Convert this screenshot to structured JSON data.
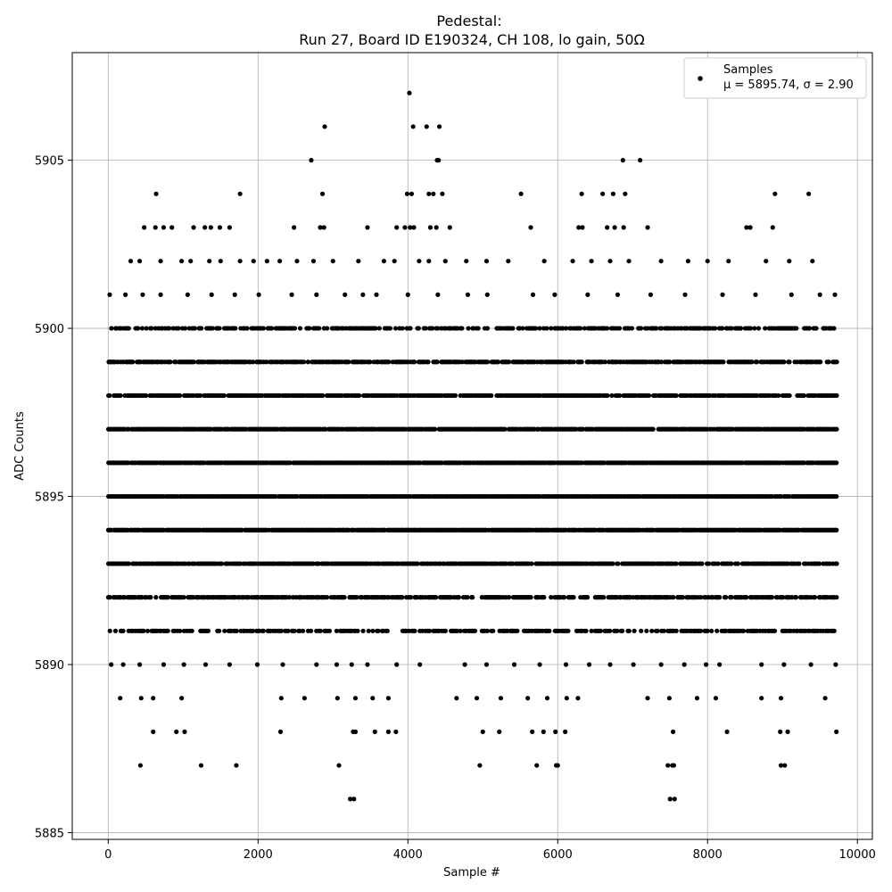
{
  "chart_data": {
    "type": "scatter",
    "title": "Pedestal:",
    "subtitle": "Run 27, Board ID E190324, CH 108, lo gain, 50Ω",
    "xlabel": "Sample #",
    "ylabel": "ADC Counts",
    "xlim": [
      -480,
      10200
    ],
    "ylim": [
      5884.8,
      5908.2
    ],
    "xticks": [
      0,
      2000,
      4000,
      6000,
      8000,
      10000
    ],
    "xtick_labels": [
      "0",
      "2000",
      "4000",
      "6000",
      "8000",
      "10000"
    ],
    "yticks": [
      5885,
      5890,
      5895,
      5900,
      5905
    ],
    "ytick_labels": [
      "5885",
      "5890",
      "5895",
      "5900",
      "5905"
    ],
    "grid": true,
    "legend_position": "top-right",
    "marker_color": "#000000",
    "series": [
      {
        "name": "Samples",
        "label": "μ = 5895.74, σ = 2.90",
        "mean": 5895.74,
        "std": 2.9,
        "n_samples": 9720,
        "value_range": [
          5886,
          5907
        ],
        "continuous_bands": [
          5891,
          5892,
          5893,
          5894,
          5895,
          5896,
          5897,
          5898,
          5899,
          5900
        ],
        "sparse_points": [
          {
            "x": 4020,
            "y": 5907
          },
          {
            "x": 2890,
            "y": 5906
          },
          {
            "x": 4070,
            "y": 5906
          },
          {
            "x": 4250,
            "y": 5906
          },
          {
            "x": 4420,
            "y": 5906
          },
          {
            "x": 2710,
            "y": 5905
          },
          {
            "x": 4390,
            "y": 5905
          },
          {
            "x": 4410,
            "y": 5905
          },
          {
            "x": 6870,
            "y": 5905
          },
          {
            "x": 7100,
            "y": 5905
          },
          {
            "x": 640,
            "y": 5904
          },
          {
            "x": 1760,
            "y": 5904
          },
          {
            "x": 2860,
            "y": 5904
          },
          {
            "x": 3990,
            "y": 5904
          },
          {
            "x": 4050,
            "y": 5904
          },
          {
            "x": 4280,
            "y": 5904
          },
          {
            "x": 4340,
            "y": 5904
          },
          {
            "x": 4460,
            "y": 5904
          },
          {
            "x": 5510,
            "y": 5904
          },
          {
            "x": 6320,
            "y": 5904
          },
          {
            "x": 6600,
            "y": 5904
          },
          {
            "x": 6740,
            "y": 5904
          },
          {
            "x": 6900,
            "y": 5904
          },
          {
            "x": 8900,
            "y": 5904
          },
          {
            "x": 9350,
            "y": 5904
          },
          {
            "x": 480,
            "y": 5903
          },
          {
            "x": 630,
            "y": 5903
          },
          {
            "x": 740,
            "y": 5903
          },
          {
            "x": 850,
            "y": 5903
          },
          {
            "x": 1140,
            "y": 5903
          },
          {
            "x": 1290,
            "y": 5903
          },
          {
            "x": 1370,
            "y": 5903
          },
          {
            "x": 1490,
            "y": 5903
          },
          {
            "x": 1620,
            "y": 5903
          },
          {
            "x": 2480,
            "y": 5903
          },
          {
            "x": 2830,
            "y": 5903
          },
          {
            "x": 2880,
            "y": 5903
          },
          {
            "x": 3460,
            "y": 5903
          },
          {
            "x": 3850,
            "y": 5903
          },
          {
            "x": 3960,
            "y": 5903
          },
          {
            "x": 4030,
            "y": 5903
          },
          {
            "x": 4080,
            "y": 5903
          },
          {
            "x": 4300,
            "y": 5903
          },
          {
            "x": 4380,
            "y": 5903
          },
          {
            "x": 4560,
            "y": 5903
          },
          {
            "x": 5640,
            "y": 5903
          },
          {
            "x": 6280,
            "y": 5903
          },
          {
            "x": 6330,
            "y": 5903
          },
          {
            "x": 6660,
            "y": 5903
          },
          {
            "x": 6760,
            "y": 5903
          },
          {
            "x": 6880,
            "y": 5903
          },
          {
            "x": 7200,
            "y": 5903
          },
          {
            "x": 8520,
            "y": 5903
          },
          {
            "x": 8570,
            "y": 5903
          },
          {
            "x": 8870,
            "y": 5903
          },
          {
            "x": 300,
            "y": 5902
          },
          {
            "x": 420,
            "y": 5902
          },
          {
            "x": 700,
            "y": 5902
          },
          {
            "x": 980,
            "y": 5902
          },
          {
            "x": 1100,
            "y": 5902
          },
          {
            "x": 1350,
            "y": 5902
          },
          {
            "x": 1500,
            "y": 5902
          },
          {
            "x": 1760,
            "y": 5902
          },
          {
            "x": 1940,
            "y": 5902
          },
          {
            "x": 2120,
            "y": 5902
          },
          {
            "x": 2290,
            "y": 5902
          },
          {
            "x": 2520,
            "y": 5902
          },
          {
            "x": 2740,
            "y": 5902
          },
          {
            "x": 3000,
            "y": 5902
          },
          {
            "x": 3340,
            "y": 5902
          },
          {
            "x": 3680,
            "y": 5902
          },
          {
            "x": 3820,
            "y": 5902
          },
          {
            "x": 4150,
            "y": 5902
          },
          {
            "x": 4280,
            "y": 5902
          },
          {
            "x": 4500,
            "y": 5902
          },
          {
            "x": 4780,
            "y": 5902
          },
          {
            "x": 5050,
            "y": 5902
          },
          {
            "x": 5340,
            "y": 5902
          },
          {
            "x": 5820,
            "y": 5902
          },
          {
            "x": 6200,
            "y": 5902
          },
          {
            "x": 6450,
            "y": 5902
          },
          {
            "x": 6700,
            "y": 5902
          },
          {
            "x": 6950,
            "y": 5902
          },
          {
            "x": 7380,
            "y": 5902
          },
          {
            "x": 7740,
            "y": 5902
          },
          {
            "x": 8000,
            "y": 5902
          },
          {
            "x": 8280,
            "y": 5902
          },
          {
            "x": 8780,
            "y": 5902
          },
          {
            "x": 9090,
            "y": 5902
          },
          {
            "x": 9400,
            "y": 5902
          },
          {
            "x": 20,
            "y": 5901
          },
          {
            "x": 230,
            "y": 5901
          },
          {
            "x": 460,
            "y": 5901
          },
          {
            "x": 700,
            "y": 5901
          },
          {
            "x": 1060,
            "y": 5901
          },
          {
            "x": 1380,
            "y": 5901
          },
          {
            "x": 1690,
            "y": 5901
          },
          {
            "x": 2010,
            "y": 5901
          },
          {
            "x": 2450,
            "y": 5901
          },
          {
            "x": 2780,
            "y": 5901
          },
          {
            "x": 3160,
            "y": 5901
          },
          {
            "x": 3400,
            "y": 5901
          },
          {
            "x": 3580,
            "y": 5901
          },
          {
            "x": 4000,
            "y": 5901
          },
          {
            "x": 4400,
            "y": 5901
          },
          {
            "x": 4800,
            "y": 5901
          },
          {
            "x": 5060,
            "y": 5901
          },
          {
            "x": 5670,
            "y": 5901
          },
          {
            "x": 5960,
            "y": 5901
          },
          {
            "x": 6400,
            "y": 5901
          },
          {
            "x": 6800,
            "y": 5901
          },
          {
            "x": 7240,
            "y": 5901
          },
          {
            "x": 7700,
            "y": 5901
          },
          {
            "x": 8200,
            "y": 5901
          },
          {
            "x": 8640,
            "y": 5901
          },
          {
            "x": 9120,
            "y": 5901
          },
          {
            "x": 9500,
            "y": 5901
          },
          {
            "x": 9700,
            "y": 5901
          },
          {
            "x": 40,
            "y": 5890
          },
          {
            "x": 200,
            "y": 5890
          },
          {
            "x": 420,
            "y": 5890
          },
          {
            "x": 740,
            "y": 5890
          },
          {
            "x": 1010,
            "y": 5890
          },
          {
            "x": 1300,
            "y": 5890
          },
          {
            "x": 1620,
            "y": 5890
          },
          {
            "x": 1990,
            "y": 5890
          },
          {
            "x": 2330,
            "y": 5890
          },
          {
            "x": 2780,
            "y": 5890
          },
          {
            "x": 3050,
            "y": 5890
          },
          {
            "x": 3250,
            "y": 5890
          },
          {
            "x": 3460,
            "y": 5890
          },
          {
            "x": 3850,
            "y": 5890
          },
          {
            "x": 4160,
            "y": 5890
          },
          {
            "x": 4760,
            "y": 5890
          },
          {
            "x": 5050,
            "y": 5890
          },
          {
            "x": 5420,
            "y": 5890
          },
          {
            "x": 5760,
            "y": 5890
          },
          {
            "x": 6110,
            "y": 5890
          },
          {
            "x": 6420,
            "y": 5890
          },
          {
            "x": 6700,
            "y": 5890
          },
          {
            "x": 7010,
            "y": 5890
          },
          {
            "x": 7380,
            "y": 5890
          },
          {
            "x": 7690,
            "y": 5890
          },
          {
            "x": 7980,
            "y": 5890
          },
          {
            "x": 8160,
            "y": 5890
          },
          {
            "x": 8720,
            "y": 5890
          },
          {
            "x": 9020,
            "y": 5890
          },
          {
            "x": 9380,
            "y": 5890
          },
          {
            "x": 9710,
            "y": 5890
          },
          {
            "x": 160,
            "y": 5889
          },
          {
            "x": 440,
            "y": 5889
          },
          {
            "x": 600,
            "y": 5889
          },
          {
            "x": 980,
            "y": 5889
          },
          {
            "x": 2310,
            "y": 5889
          },
          {
            "x": 2620,
            "y": 5889
          },
          {
            "x": 3060,
            "y": 5889
          },
          {
            "x": 3300,
            "y": 5889
          },
          {
            "x": 3530,
            "y": 5889
          },
          {
            "x": 3740,
            "y": 5889
          },
          {
            "x": 4650,
            "y": 5889
          },
          {
            "x": 4920,
            "y": 5889
          },
          {
            "x": 5240,
            "y": 5889
          },
          {
            "x": 5600,
            "y": 5889
          },
          {
            "x": 5860,
            "y": 5889
          },
          {
            "x": 6120,
            "y": 5889
          },
          {
            "x": 6270,
            "y": 5889
          },
          {
            "x": 7200,
            "y": 5889
          },
          {
            "x": 7490,
            "y": 5889
          },
          {
            "x": 7860,
            "y": 5889
          },
          {
            "x": 8110,
            "y": 5889
          },
          {
            "x": 8720,
            "y": 5889
          },
          {
            "x": 8980,
            "y": 5889
          },
          {
            "x": 9570,
            "y": 5889
          },
          {
            "x": 600,
            "y": 5888
          },
          {
            "x": 910,
            "y": 5888
          },
          {
            "x": 1020,
            "y": 5888
          },
          {
            "x": 2300,
            "y": 5888
          },
          {
            "x": 3270,
            "y": 5888
          },
          {
            "x": 3300,
            "y": 5888
          },
          {
            "x": 3560,
            "y": 5888
          },
          {
            "x": 3740,
            "y": 5888
          },
          {
            "x": 3840,
            "y": 5888
          },
          {
            "x": 5000,
            "y": 5888
          },
          {
            "x": 5220,
            "y": 5888
          },
          {
            "x": 5660,
            "y": 5888
          },
          {
            "x": 5810,
            "y": 5888
          },
          {
            "x": 5970,
            "y": 5888
          },
          {
            "x": 6100,
            "y": 5888
          },
          {
            "x": 7540,
            "y": 5888
          },
          {
            "x": 8260,
            "y": 5888
          },
          {
            "x": 8970,
            "y": 5888
          },
          {
            "x": 9070,
            "y": 5888
          },
          {
            "x": 9720,
            "y": 5888
          },
          {
            "x": 430,
            "y": 5887
          },
          {
            "x": 1240,
            "y": 5887
          },
          {
            "x": 1710,
            "y": 5887
          },
          {
            "x": 3080,
            "y": 5887
          },
          {
            "x": 4960,
            "y": 5887
          },
          {
            "x": 5720,
            "y": 5887
          },
          {
            "x": 5980,
            "y": 5887
          },
          {
            "x": 6000,
            "y": 5887
          },
          {
            "x": 7470,
            "y": 5887
          },
          {
            "x": 7530,
            "y": 5887
          },
          {
            "x": 7550,
            "y": 5887
          },
          {
            "x": 8980,
            "y": 5887
          },
          {
            "x": 9030,
            "y": 5887
          },
          {
            "x": 3230,
            "y": 5886
          },
          {
            "x": 3280,
            "y": 5886
          },
          {
            "x": 7500,
            "y": 5886
          },
          {
            "x": 7560,
            "y": 5886
          }
        ]
      }
    ]
  }
}
